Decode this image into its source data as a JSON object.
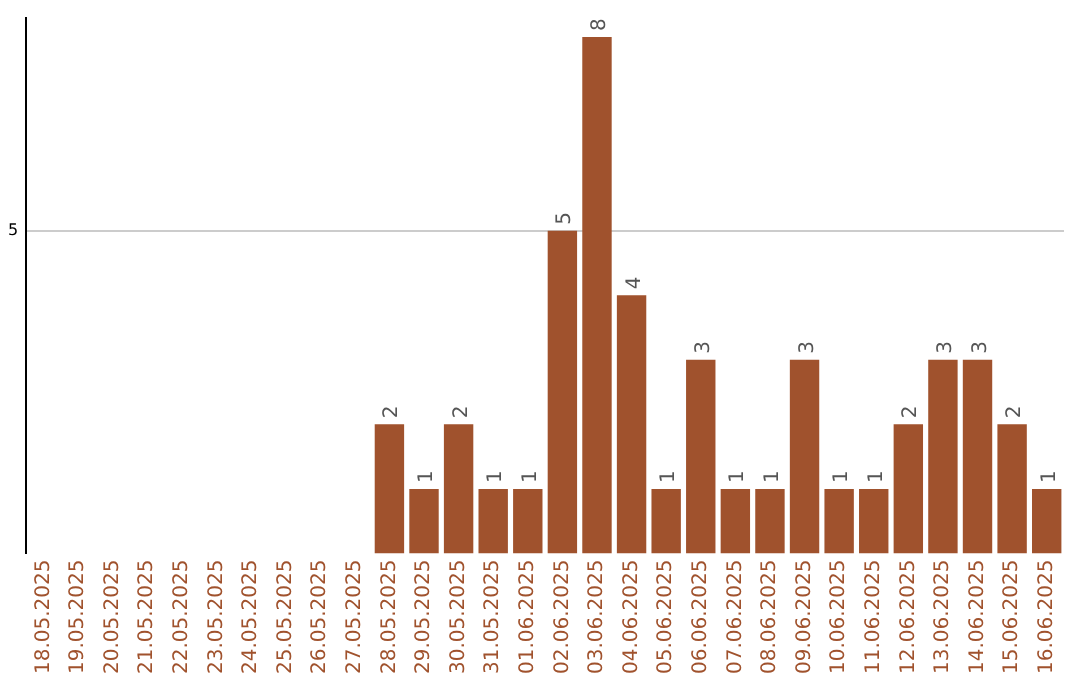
{
  "chart_data": {
    "type": "bar",
    "categories": [
      "18.05.2025",
      "19.05.2025",
      "20.05.2025",
      "21.05.2025",
      "22.05.2025",
      "23.05.2025",
      "24.05.2025",
      "25.05.2025",
      "26.05.2025",
      "27.05.2025",
      "28.05.2025",
      "29.05.2025",
      "30.05.2025",
      "31.05.2025",
      "01.06.2025",
      "02.06.2025",
      "03.06.2025",
      "04.06.2025",
      "05.06.2025",
      "06.06.2025",
      "07.06.2025",
      "08.06.2025",
      "09.06.2025",
      "10.06.2025",
      "11.06.2025",
      "12.06.2025",
      "13.06.2025",
      "14.06.2025",
      "15.06.2025",
      "16.06.2025"
    ],
    "values": [
      0,
      0,
      0,
      0,
      0,
      0,
      0,
      0,
      0,
      0,
      2,
      1,
      2,
      1,
      1,
      5,
      8,
      4,
      1,
      3,
      1,
      1,
      3,
      1,
      1,
      2,
      3,
      3,
      2,
      1
    ],
    "value_labels": [
      null,
      null,
      null,
      null,
      null,
      null,
      null,
      null,
      null,
      null,
      "2",
      "1",
      "2",
      "1",
      "1",
      "5",
      "8",
      "4",
      "1",
      "3",
      "1",
      "1",
      "3",
      "1",
      "1",
      "2",
      "3",
      "3",
      "2",
      "1"
    ],
    "color": "#a0522d",
    "ylim": [
      0,
      8.3
    ],
    "yticks": [
      5
    ],
    "grid": "y"
  }
}
